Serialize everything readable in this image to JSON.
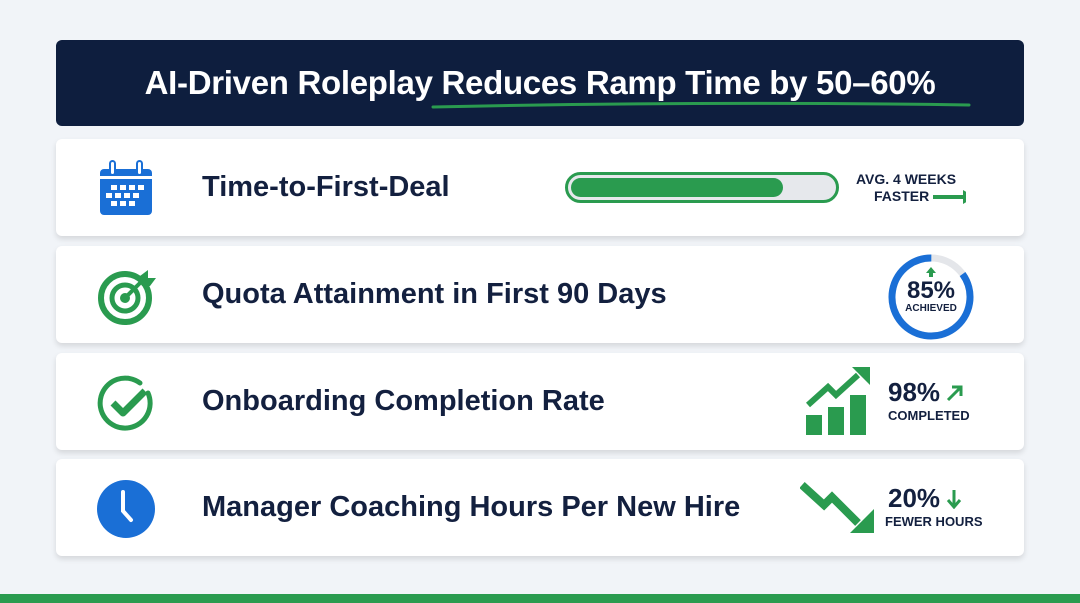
{
  "title": "AI-Driven Roleplay Reduces Ramp Time by 50–60%",
  "colors": {
    "navy": "#0e1e3e",
    "green": "#2a9b4f",
    "blue": "#1a6fd6"
  },
  "rows": [
    {
      "label": "Time-to-First-Deal",
      "icon": "calendar-icon",
      "progress": 0.81,
      "stat_line1": "AVG. 4 WEEKS",
      "stat_line2": "FASTER"
    },
    {
      "label": "Quota Attainment in First 90 Days",
      "icon": "target-icon",
      "value": "85%",
      "value_fraction": 0.85,
      "caption": "ACHIEVED"
    },
    {
      "label": "Onboarding Completion Rate",
      "icon": "check-circle-icon",
      "value": "98%",
      "caption": "COMPLETED"
    },
    {
      "label": "Manager Coaching Hours Per New Hire",
      "icon": "clock-icon",
      "value": "20%",
      "caption": "FEWER HOURS"
    }
  ]
}
